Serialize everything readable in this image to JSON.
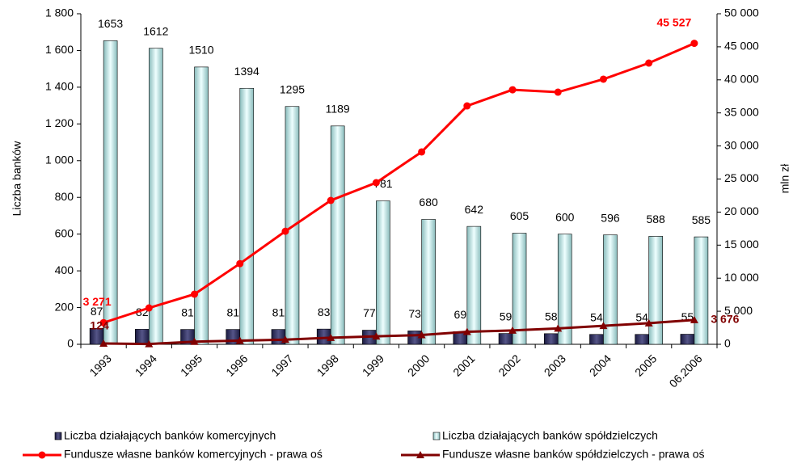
{
  "chart_data": {
    "type": "bar",
    "y_label": "Liczba banków",
    "y2_label": "mln zł",
    "categories": [
      "1993",
      "1994",
      "1995",
      "1996",
      "1997",
      "1998",
      "1999",
      "2000",
      "2001",
      "2002",
      "2003",
      "2004",
      "2005",
      "06.2006"
    ],
    "series": [
      {
        "name": "Liczba działających banków komercyjnych",
        "type": "bar",
        "axis": "y",
        "color": "#333366",
        "values": [
          87,
          82,
          81,
          81,
          81,
          83,
          77,
          73,
          69,
          59,
          58,
          54,
          54,
          55
        ]
      },
      {
        "name": "Liczba działających banków spółdzielczych",
        "type": "bar",
        "axis": "y",
        "color": "#ccffff",
        "values": [
          1653,
          1612,
          1510,
          1394,
          1295,
          1189,
          781,
          680,
          642,
          605,
          600,
          596,
          588,
          585
        ]
      },
      {
        "name": "Fundusze własne banków komercyjnych - prawa oś",
        "type": "line",
        "axis": "y2",
        "color": "#ff0000",
        "marker": "circle",
        "values": [
          3271,
          5500,
          7580,
          12200,
          17100,
          21760,
          24450,
          29100,
          36060,
          38500,
          38140,
          40100,
          42540,
          45527
        ],
        "value_labels": [
          "3 271",
          null,
          null,
          null,
          null,
          null,
          null,
          null,
          null,
          null,
          null,
          null,
          null,
          "45 527"
        ]
      },
      {
        "name": "Fundusze własne banków spółdzielczych - prawa oś",
        "type": "line",
        "axis": "y2",
        "color": "#800000",
        "marker": "triangle",
        "values": [
          124,
          50,
          400,
          550,
          700,
          1000,
          1200,
          1400,
          1900,
          2100,
          2400,
          2800,
          3200,
          3676
        ],
        "value_labels": [
          "124",
          null,
          null,
          null,
          null,
          null,
          null,
          null,
          null,
          null,
          null,
          null,
          null,
          "3 676"
        ]
      }
    ],
    "ylim": [
      0,
      1800
    ],
    "yticks": [
      0,
      200,
      400,
      600,
      800,
      {
        "value": 1000,
        "label": "1 000"
      },
      {
        "value": 1200,
        "label": "1 200"
      },
      {
        "value": 1400,
        "label": "1 400"
      },
      {
        "value": 1600,
        "label": "1 600"
      },
      {
        "value": 1800,
        "label": "1 800"
      }
    ],
    "y2lim": [
      0,
      50000
    ],
    "y2ticks": [
      0,
      {
        "value": 5000,
        "label": "5 000"
      },
      {
        "value": 10000,
        "label": "10 000"
      },
      {
        "value": 15000,
        "label": "15 000"
      },
      {
        "value": 20000,
        "label": "20 000"
      },
      {
        "value": 25000,
        "label": "25 000"
      },
      {
        "value": 30000,
        "label": "30 000"
      },
      {
        "value": 35000,
        "label": "35 000"
      },
      {
        "value": 40000,
        "label": "40 000"
      },
      {
        "value": 45000,
        "label": "45 000"
      },
      {
        "value": 50000,
        "label": "50 000"
      }
    ],
    "grid": false,
    "legend": "bottom"
  }
}
